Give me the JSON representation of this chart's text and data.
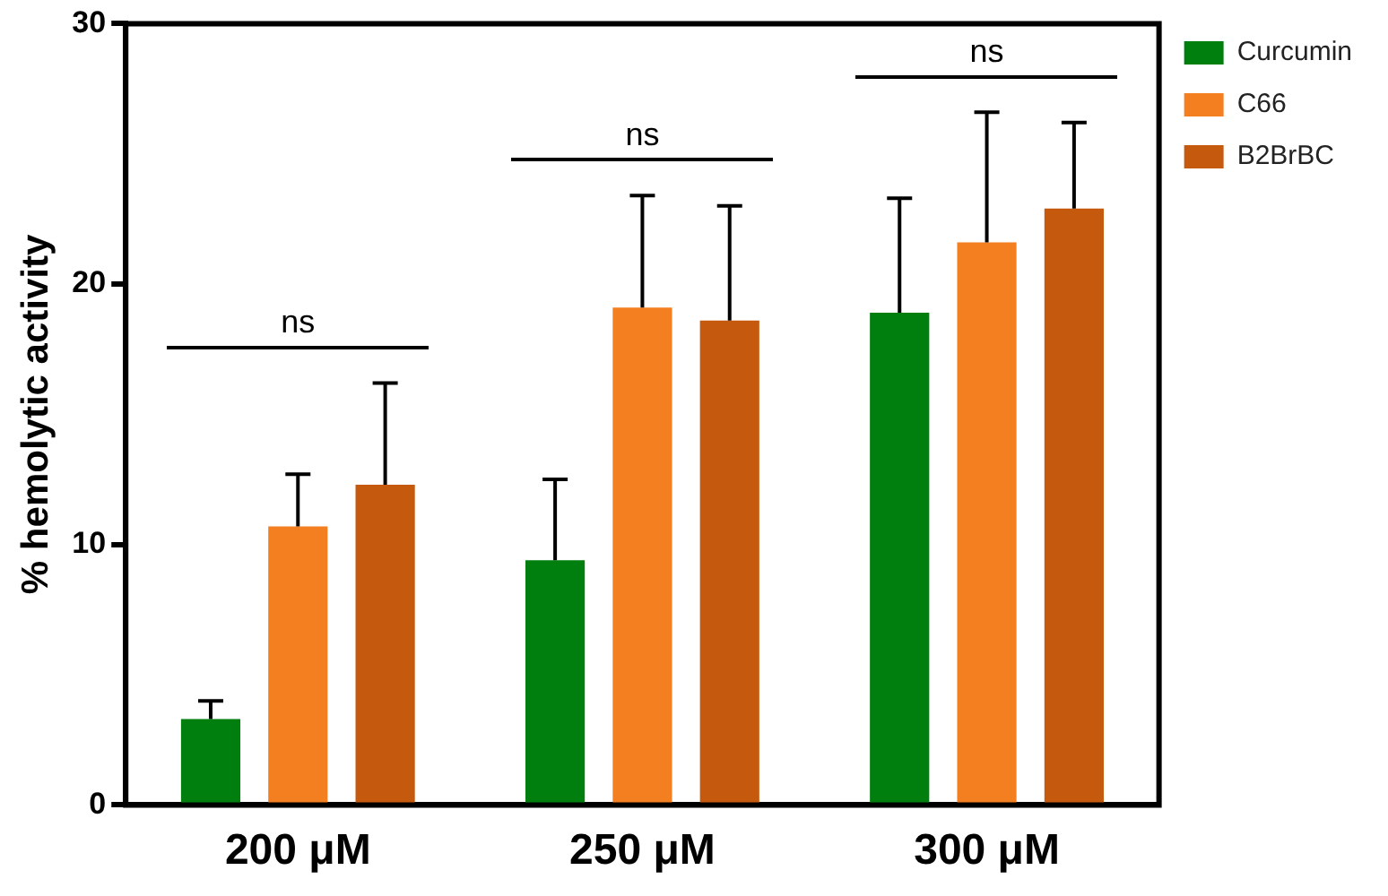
{
  "chart_data": {
    "type": "bar",
    "ylabel": "% hemolytic activity",
    "categories": [
      "200 μM",
      "250 μM",
      "300 μM"
    ],
    "series": [
      {
        "name": "Curcumin",
        "color": "#007f0e",
        "values": [
          3.3,
          9.4,
          18.9
        ],
        "errors": [
          0.7,
          3.1,
          4.4
        ]
      },
      {
        "name": "C66",
        "color": "#f47f20",
        "values": [
          10.7,
          19.1,
          21.6
        ],
        "errors": [
          2.0,
          4.3,
          5.0
        ]
      },
      {
        "name": "B2BrBC",
        "color": "#c55a0e",
        "values": [
          12.3,
          18.6,
          22.9
        ],
        "errors": [
          3.9,
          4.4,
          3.3
        ]
      }
    ],
    "ylim": [
      0,
      30
    ],
    "yticks": [
      0,
      10,
      20,
      30
    ],
    "grid": false,
    "legend": "top right",
    "annotations": [
      "ns",
      "ns",
      "ns"
    ]
  }
}
